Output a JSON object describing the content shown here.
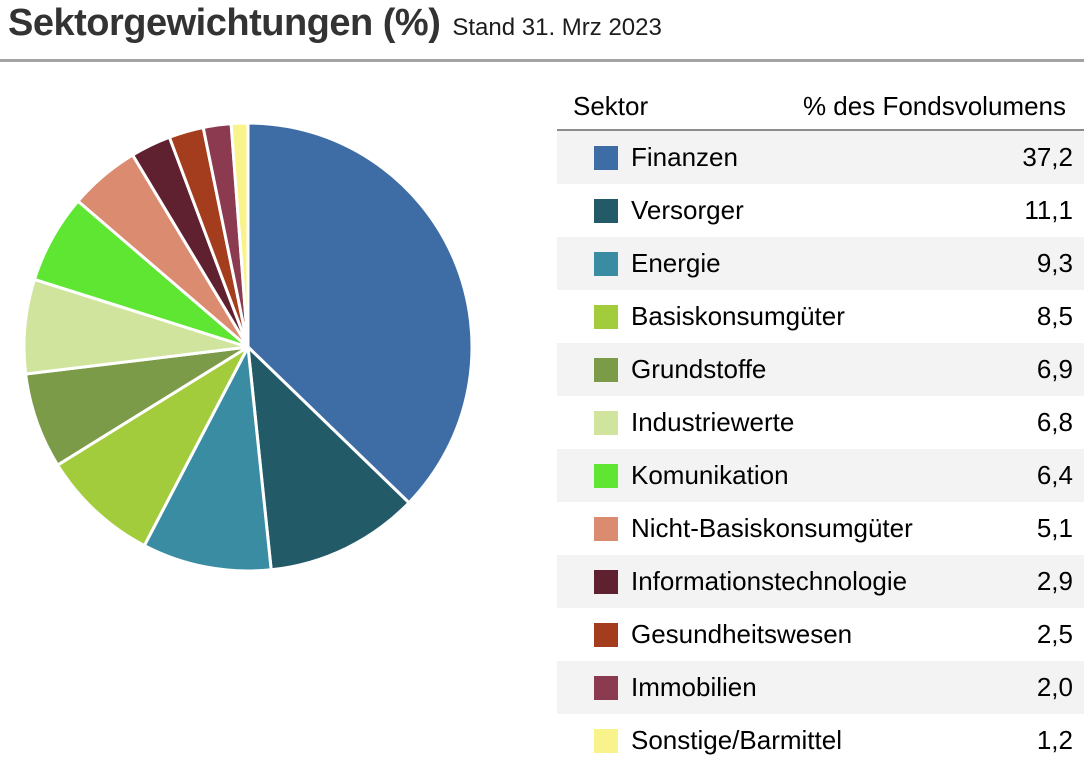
{
  "header": {
    "title": "Sektorgewichtungen (%)",
    "subtitle": "Stand 31. Mrz 2023"
  },
  "table": {
    "columns": [
      "Sektor",
      "% des Fondsvolumens"
    ]
  },
  "chart_data": {
    "type": "pie",
    "title": "Sektorgewichtungen (%)",
    "as_of_label": "Stand 31. Mrz 2023",
    "unit": "% des Fondsvolumens",
    "start_angle_deg": -90,
    "direction": "clockwise",
    "legend_position": "right-table",
    "categories": [
      "Finanzen",
      "Versorger",
      "Energie",
      "Basiskonsumgüter",
      "Grundstoffe",
      "Industriewerte",
      "Komunikation",
      "Nicht-Basiskonsumgüter",
      "Informationstechnologie",
      "Gesundheitswesen",
      "Immobilien",
      "Sonstige/Barmittel"
    ],
    "values": [
      37.2,
      11.1,
      9.3,
      8.5,
      6.9,
      6.8,
      6.4,
      5.1,
      2.9,
      2.5,
      2.0,
      1.2
    ],
    "values_display": [
      "37,2",
      "11,1",
      "9,3",
      "8,5",
      "6,9",
      "6,8",
      "6,4",
      "5,1",
      "2,9",
      "2,5",
      "2,0",
      "1,2"
    ],
    "colors": [
      "#3E6DA6",
      "#235A68",
      "#3A8CA3",
      "#A3CC3C",
      "#7C9B48",
      "#D0E49E",
      "#5EE632",
      "#DB8B70",
      "#5F2130",
      "#A33D1D",
      "#8B3A4F",
      "#F8F48B"
    ],
    "slice_stroke_color": "#ffffff",
    "slice_stroke_width": 3
  },
  "style_colors": {
    "zebra_row_bg": "#f3f3f3",
    "title_rule": "#a3a3a3",
    "header_underline": "#8c8c8c",
    "text": "#000000",
    "title_text": "#333333"
  }
}
